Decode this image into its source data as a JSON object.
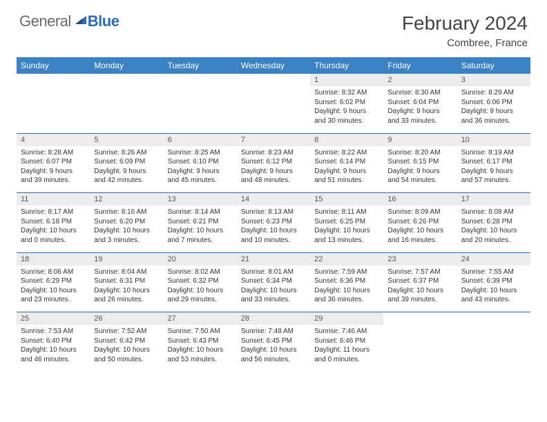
{
  "brand": {
    "word1": "General",
    "word2": "Blue",
    "color1": "#6a6a6a",
    "color2": "#2b6cb0"
  },
  "title": "February 2024",
  "location": "Combree, France",
  "header_bg": "#3b82c4",
  "header_fg": "#ffffff",
  "daynum_bg": "#ececec",
  "rule_color": "#2b6cb0",
  "text_color": "#333333",
  "columns": [
    "Sunday",
    "Monday",
    "Tuesday",
    "Wednesday",
    "Thursday",
    "Friday",
    "Saturday"
  ],
  "weeks": [
    [
      null,
      null,
      null,
      null,
      {
        "n": "1",
        "sr": "8:32 AM",
        "ss": "6:02 PM",
        "dl": "9 hours and 30 minutes."
      },
      {
        "n": "2",
        "sr": "8:30 AM",
        "ss": "6:04 PM",
        "dl": "9 hours and 33 minutes."
      },
      {
        "n": "3",
        "sr": "8:29 AM",
        "ss": "6:06 PM",
        "dl": "9 hours and 36 minutes."
      }
    ],
    [
      {
        "n": "4",
        "sr": "8:28 AM",
        "ss": "6:07 PM",
        "dl": "9 hours and 39 minutes."
      },
      {
        "n": "5",
        "sr": "8:26 AM",
        "ss": "6:09 PM",
        "dl": "9 hours and 42 minutes."
      },
      {
        "n": "6",
        "sr": "8:25 AM",
        "ss": "6:10 PM",
        "dl": "9 hours and 45 minutes."
      },
      {
        "n": "7",
        "sr": "8:23 AM",
        "ss": "6:12 PM",
        "dl": "9 hours and 48 minutes."
      },
      {
        "n": "8",
        "sr": "8:22 AM",
        "ss": "6:14 PM",
        "dl": "9 hours and 51 minutes."
      },
      {
        "n": "9",
        "sr": "8:20 AM",
        "ss": "6:15 PM",
        "dl": "9 hours and 54 minutes."
      },
      {
        "n": "10",
        "sr": "8:19 AM",
        "ss": "6:17 PM",
        "dl": "9 hours and 57 minutes."
      }
    ],
    [
      {
        "n": "11",
        "sr": "8:17 AM",
        "ss": "6:18 PM",
        "dl": "10 hours and 0 minutes."
      },
      {
        "n": "12",
        "sr": "8:16 AM",
        "ss": "6:20 PM",
        "dl": "10 hours and 3 minutes."
      },
      {
        "n": "13",
        "sr": "8:14 AM",
        "ss": "6:21 PM",
        "dl": "10 hours and 7 minutes."
      },
      {
        "n": "14",
        "sr": "8:13 AM",
        "ss": "6:23 PM",
        "dl": "10 hours and 10 minutes."
      },
      {
        "n": "15",
        "sr": "8:11 AM",
        "ss": "6:25 PM",
        "dl": "10 hours and 13 minutes."
      },
      {
        "n": "16",
        "sr": "8:09 AM",
        "ss": "6:26 PM",
        "dl": "10 hours and 16 minutes."
      },
      {
        "n": "17",
        "sr": "8:08 AM",
        "ss": "6:28 PM",
        "dl": "10 hours and 20 minutes."
      }
    ],
    [
      {
        "n": "18",
        "sr": "8:06 AM",
        "ss": "6:29 PM",
        "dl": "10 hours and 23 minutes."
      },
      {
        "n": "19",
        "sr": "8:04 AM",
        "ss": "6:31 PM",
        "dl": "10 hours and 26 minutes."
      },
      {
        "n": "20",
        "sr": "8:02 AM",
        "ss": "6:32 PM",
        "dl": "10 hours and 29 minutes."
      },
      {
        "n": "21",
        "sr": "8:01 AM",
        "ss": "6:34 PM",
        "dl": "10 hours and 33 minutes."
      },
      {
        "n": "22",
        "sr": "7:59 AM",
        "ss": "6:36 PM",
        "dl": "10 hours and 36 minutes."
      },
      {
        "n": "23",
        "sr": "7:57 AM",
        "ss": "6:37 PM",
        "dl": "10 hours and 39 minutes."
      },
      {
        "n": "24",
        "sr": "7:55 AM",
        "ss": "6:39 PM",
        "dl": "10 hours and 43 minutes."
      }
    ],
    [
      {
        "n": "25",
        "sr": "7:53 AM",
        "ss": "6:40 PM",
        "dl": "10 hours and 46 minutes."
      },
      {
        "n": "26",
        "sr": "7:52 AM",
        "ss": "6:42 PM",
        "dl": "10 hours and 50 minutes."
      },
      {
        "n": "27",
        "sr": "7:50 AM",
        "ss": "6:43 PM",
        "dl": "10 hours and 53 minutes."
      },
      {
        "n": "28",
        "sr": "7:48 AM",
        "ss": "6:45 PM",
        "dl": "10 hours and 56 minutes."
      },
      {
        "n": "29",
        "sr": "7:46 AM",
        "ss": "6:46 PM",
        "dl": "11 hours and 0 minutes."
      },
      null,
      null
    ]
  ],
  "labels": {
    "sunrise": "Sunrise:",
    "sunset": "Sunset:",
    "daylight": "Daylight:"
  }
}
